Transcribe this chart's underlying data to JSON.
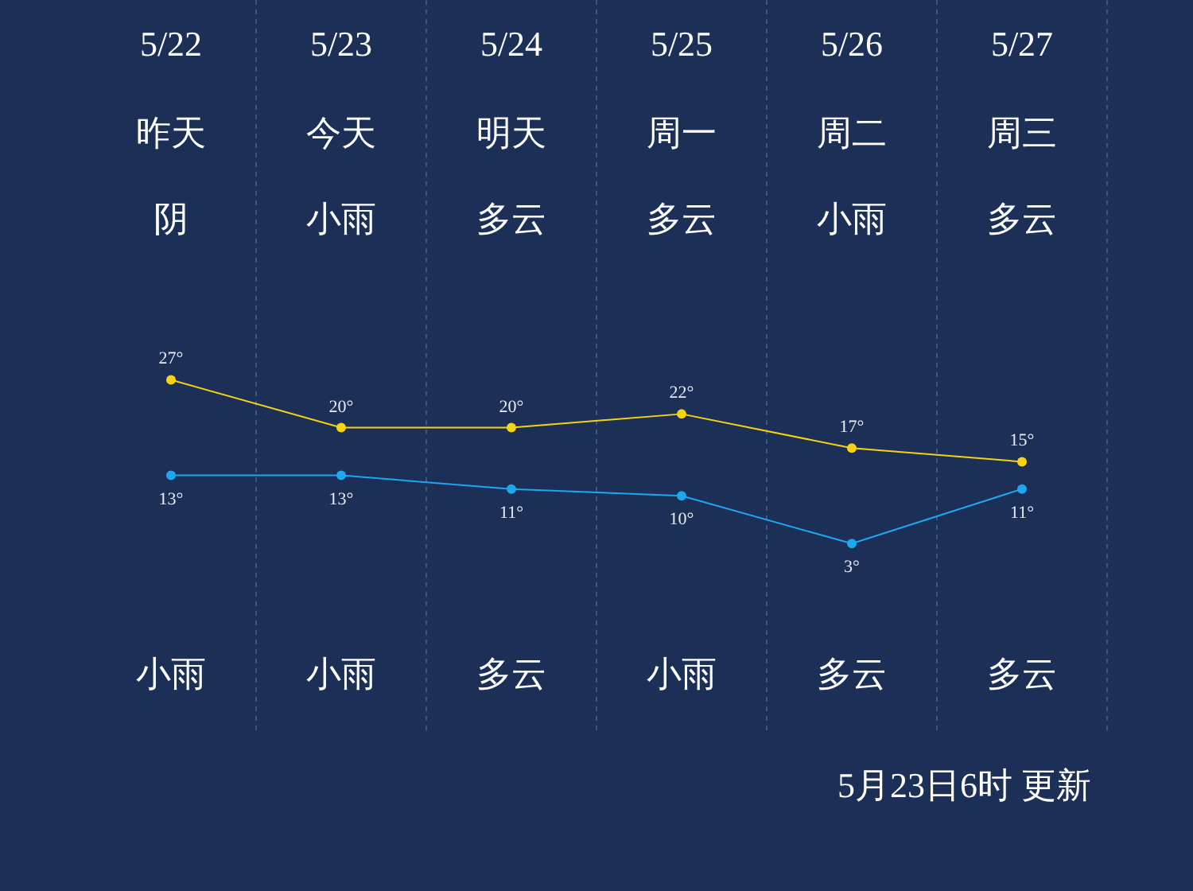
{
  "chart_data": {
    "type": "line",
    "categories": [
      "5/22",
      "5/23",
      "5/24",
      "5/25",
      "5/26",
      "5/27"
    ],
    "series": [
      {
        "color": "#f5d312",
        "values": [
          27,
          20,
          20,
          22,
          17,
          15
        ],
        "value_labels": [
          "27°",
          "20°",
          "20°",
          "22°",
          "17°",
          "15°"
        ]
      },
      {
        "color": "#1ea7ee",
        "values": [
          13,
          13,
          11,
          10,
          3,
          11
        ],
        "value_labels": [
          "13°",
          "13°",
          "11°",
          "10°",
          "3°",
          "11°"
        ]
      }
    ],
    "annotations": [
      "昨天",
      "今天",
      "明天",
      "周一",
      "周二",
      "周三",
      "阴",
      "小雨",
      "多云",
      "多云",
      "小雨",
      "多云",
      "小雨",
      "小雨",
      "多云",
      "小雨",
      "多云",
      "多云",
      "5月23日6时 更新"
    ],
    "grid": "x",
    "marker": "circle",
    "line_style": "solid"
  }
}
